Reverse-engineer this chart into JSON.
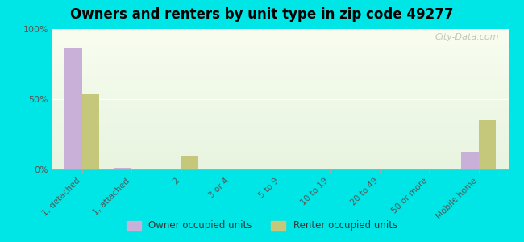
{
  "title": "Owners and renters by unit type in zip code 49277",
  "categories": [
    "1, detached",
    "1, attached",
    "2",
    "3 or 4",
    "5 to 9",
    "10 to 19",
    "20 to 49",
    "50 or more",
    "Mobile home"
  ],
  "owner_values": [
    87,
    1,
    0,
    0,
    0,
    0,
    0,
    0,
    12
  ],
  "renter_values": [
    54,
    0,
    10,
    0,
    0,
    0,
    0,
    0,
    35
  ],
  "owner_color": "#c9b0d8",
  "renter_color": "#c5c87a",
  "background_color": "#00e5e5",
  "plot_bg_top": "#e8f4e0",
  "plot_bg_bottom": "#f8fdf0",
  "ylim": [
    0,
    100
  ],
  "yticks": [
    0,
    50,
    100
  ],
  "ytick_labels": [
    "0%",
    "50%",
    "100%"
  ],
  "watermark": "City-Data.com",
  "legend_owner": "Owner occupied units",
  "legend_renter": "Renter occupied units",
  "bar_width": 0.35
}
